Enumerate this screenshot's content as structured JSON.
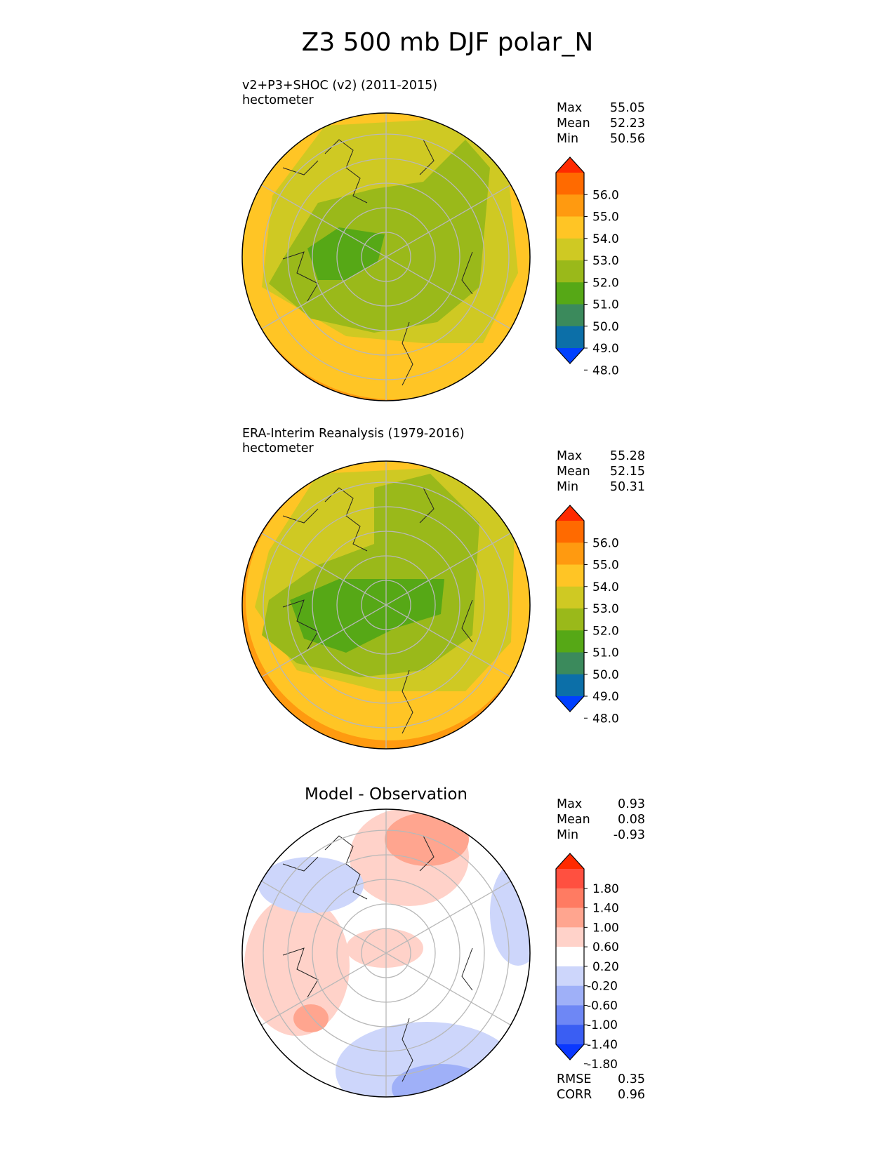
{
  "title": "Z3 500 mb DJF polar_N",
  "panels": [
    {
      "id": "test",
      "title_line1": "v2+P3+SHOC (v2) (2011-2015)",
      "title_line2": "hectometer",
      "stats": [
        {
          "label": "Max",
          "value": "55.05"
        },
        {
          "label": "Mean",
          "value": "52.23"
        },
        {
          "label": "Min",
          "value": "50.56"
        }
      ],
      "colorbar": {
        "ticks": [
          "56.0",
          "55.0",
          "54.0",
          "53.0",
          "52.0",
          "51.0",
          "50.0",
          "49.0",
          "48.0"
        ],
        "colors": [
          "#ff2a00",
          "#ff6a00",
          "#ff9a10",
          "#ffc525",
          "#cfc923",
          "#9ab91a",
          "#56a816",
          "#3b8a5c",
          "#0c6fa8",
          "#0040ff"
        ]
      }
    },
    {
      "id": "ref",
      "title_line1": "ERA-Interim Reanalysis (1979-2016)",
      "title_line2": "hectometer",
      "stats": [
        {
          "label": "Max",
          "value": "55.28"
        },
        {
          "label": "Mean",
          "value": "52.15"
        },
        {
          "label": "Min",
          "value": "50.31"
        }
      ],
      "colorbar": {
        "ticks": [
          "56.0",
          "55.0",
          "54.0",
          "53.0",
          "52.0",
          "51.0",
          "50.0",
          "49.0",
          "48.0"
        ],
        "colors": [
          "#ff2a00",
          "#ff6a00",
          "#ff9a10",
          "#ffc525",
          "#cfc923",
          "#9ab91a",
          "#56a816",
          "#3b8a5c",
          "#0c6fa8",
          "#0040ff"
        ]
      }
    },
    {
      "id": "diff",
      "title": "Model - Observation",
      "stats": [
        {
          "label": "Max",
          "value": "0.93"
        },
        {
          "label": "Mean",
          "value": "0.08"
        },
        {
          "label": "Min",
          "value": "-0.93"
        }
      ],
      "metrics": [
        {
          "label": "RMSE",
          "value": "0.35"
        },
        {
          "label": "CORR",
          "value": "0.96"
        }
      ],
      "colorbar": {
        "ticks": [
          "1.80",
          "1.40",
          "1.00",
          "0.60",
          "0.20",
          "-0.20",
          "-0.60",
          "-1.00",
          "-1.40",
          "-1.80"
        ],
        "colors": [
          "#ff2a00",
          "#ff5040",
          "#ff7b62",
          "#ffa58f",
          "#ffd2c9",
          "#ffffff",
          "#cdd6fb",
          "#9fb0f8",
          "#6e87f5",
          "#3a5ef3",
          "#0a38ff"
        ]
      }
    }
  ]
}
